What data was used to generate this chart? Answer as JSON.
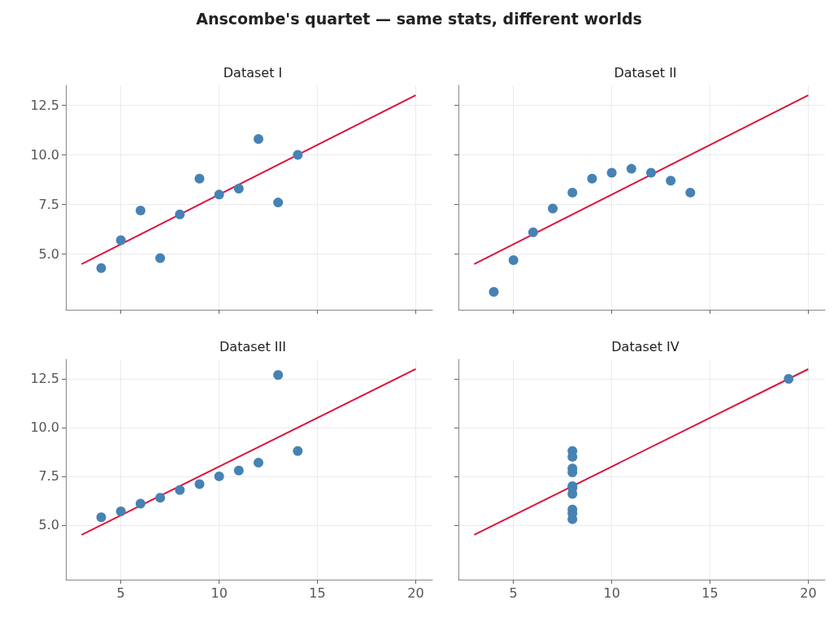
{
  "chart_data": [
    {
      "type": "scatter",
      "title": "Dataset I",
      "annotations": [
        "Anscombe's quartet — same stats, different worlds"
      ],
      "xlim": [
        2.2,
        20.85
      ],
      "ylim": [
        2.2,
        13.5
      ],
      "xticks": [
        {
          "value": 5,
          "label": null
        },
        {
          "value": 10,
          "label": null
        },
        {
          "value": 15,
          "label": null
        },
        {
          "value": 20,
          "label": null
        }
      ],
      "yticks": [
        {
          "value": 5,
          "label": "5.0"
        },
        {
          "value": 7.5,
          "label": "7.5"
        },
        {
          "value": 10,
          "label": "10.0"
        },
        {
          "value": 12.5,
          "label": "12.5"
        }
      ],
      "grid": true,
      "tick_labels": "y",
      "marker": "circle",
      "series": [
        {
          "type": "scatter",
          "color": "#4682b4",
          "x": [
            10,
            8,
            13,
            9,
            11,
            14,
            6,
            4,
            12,
            7,
            5
          ],
          "values": [
            8.0,
            7.0,
            7.6,
            8.8,
            8.3,
            10.0,
            7.2,
            4.3,
            10.8,
            4.8,
            5.7
          ]
        },
        {
          "type": "line",
          "color": "#dc143c",
          "marker": "none",
          "line_style": "solid",
          "x": [
            3,
            20
          ],
          "values": [
            4.5,
            13
          ]
        }
      ]
    },
    {
      "type": "scatter",
      "title": "Dataset II",
      "xlim": [
        2.2,
        20.85
      ],
      "ylim": [
        2.2,
        13.5
      ],
      "xticks": [
        {
          "value": 5,
          "label": null
        },
        {
          "value": 10,
          "label": null
        },
        {
          "value": 15,
          "label": null
        },
        {
          "value": 20,
          "label": null
        }
      ],
      "yticks": [
        {
          "value": 5,
          "label": null
        },
        {
          "value": 7.5,
          "label": null
        },
        {
          "value": 10,
          "label": null
        },
        {
          "value": 12.5,
          "label": null
        }
      ],
      "grid": true,
      "tick_labels": false,
      "marker": "circle",
      "series": [
        {
          "type": "scatter",
          "color": "#4682b4",
          "x": [
            10,
            8,
            13,
            9,
            11,
            14,
            6,
            4,
            12,
            7,
            5
          ],
          "values": [
            9.1,
            8.1,
            8.7,
            8.8,
            9.3,
            8.1,
            6.1,
            3.1,
            9.1,
            7.3,
            4.7
          ]
        },
        {
          "type": "line",
          "color": "#dc143c",
          "marker": "none",
          "line_style": "solid",
          "x": [
            3,
            20
          ],
          "values": [
            4.5,
            13
          ]
        }
      ]
    },
    {
      "type": "scatter",
      "title": "Dataset III",
      "xlim": [
        2.2,
        20.85
      ],
      "ylim": [
        2.2,
        13.5
      ],
      "xticks": [
        5,
        10,
        15,
        20
      ],
      "yticks": [
        {
          "value": 5,
          "label": "5.0"
        },
        {
          "value": 7.5,
          "label": "7.5"
        },
        {
          "value": 10,
          "label": "10.0"
        },
        {
          "value": 12.5,
          "label": "12.5"
        }
      ],
      "grid": true,
      "marker": "circle",
      "series": [
        {
          "type": "scatter",
          "color": "#4682b4",
          "x": [
            10,
            8,
            13,
            9,
            11,
            14,
            6,
            4,
            12,
            7,
            5
          ],
          "values": [
            7.5,
            6.8,
            12.7,
            7.1,
            7.8,
            8.8,
            6.1,
            5.4,
            8.2,
            6.4,
            5.7
          ]
        },
        {
          "type": "line",
          "color": "#dc143c",
          "marker": "none",
          "line_style": "solid",
          "x": [
            3,
            20
          ],
          "values": [
            4.5,
            13
          ]
        }
      ]
    },
    {
      "type": "scatter",
      "title": "Dataset IV",
      "xlim": [
        2.2,
        20.85
      ],
      "ylim": [
        2.2,
        13.5
      ],
      "xticks": [
        5,
        10,
        15,
        20
      ],
      "yticks": [
        {
          "value": 5,
          "label": null
        },
        {
          "value": 7.5,
          "label": null
        },
        {
          "value": 10,
          "label": null
        },
        {
          "value": 12.5,
          "label": null
        }
      ],
      "grid": true,
      "tick_labels": "x",
      "marker": "circle",
      "series": [
        {
          "type": "scatter",
          "color": "#4682b4",
          "x": [
            8,
            8,
            8,
            8,
            8,
            8,
            8,
            19,
            8,
            8,
            8
          ],
          "values": [
            6.6,
            5.8,
            7.7,
            8.8,
            8.5,
            7.0,
            5.3,
            12.5,
            5.6,
            7.9,
            6.9
          ]
        },
        {
          "type": "line",
          "color": "#dc143c",
          "marker": "none",
          "line_style": "solid",
          "x": [
            3,
            20
          ],
          "values": [
            4.5,
            13
          ]
        }
      ]
    }
  ]
}
